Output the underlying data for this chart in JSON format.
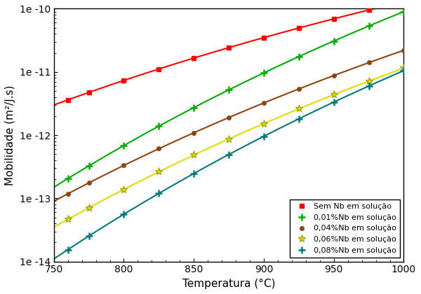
{
  "title": "",
  "xlabel": "Temperatura (°C)",
  "ylabel": "Mobilidade (m²/J.s)",
  "xlim": [
    750,
    1000
  ],
  "background_color": "#ffffff",
  "marker_temps": [
    760,
    775,
    800,
    825,
    850,
    875,
    900,
    925,
    950,
    975,
    1000
  ],
  "tick_positions": [
    750,
    800,
    850,
    900,
    950,
    1000
  ],
  "curves": [
    {
      "label": "Sem Nb em solução",
      "color": "#ff0000",
      "marker": "s",
      "T750": 3e-12,
      "T1000": 1.3e-10
    },
    {
      "label": "0,01%Nb em solução",
      "color": "#00aa00",
      "marker": "P",
      "T750": 1.5e-13,
      "T1000": 9e-11
    },
    {
      "label": "0,04%Nb em solução",
      "color": "#8B4513",
      "marker": "o",
      "T750": 9e-14,
      "T1000": 2.2e-11
    },
    {
      "label": "0,06%Nb em solução",
      "color": "#dddd00",
      "marker": "*",
      "T750": 3.5e-14,
      "T1000": 1.15e-11
    },
    {
      "label": "0,08%Nb em solução",
      "color": "#007878",
      "marker": "P",
      "T750": 1.1e-14,
      "T1000": 1.05e-11
    }
  ]
}
